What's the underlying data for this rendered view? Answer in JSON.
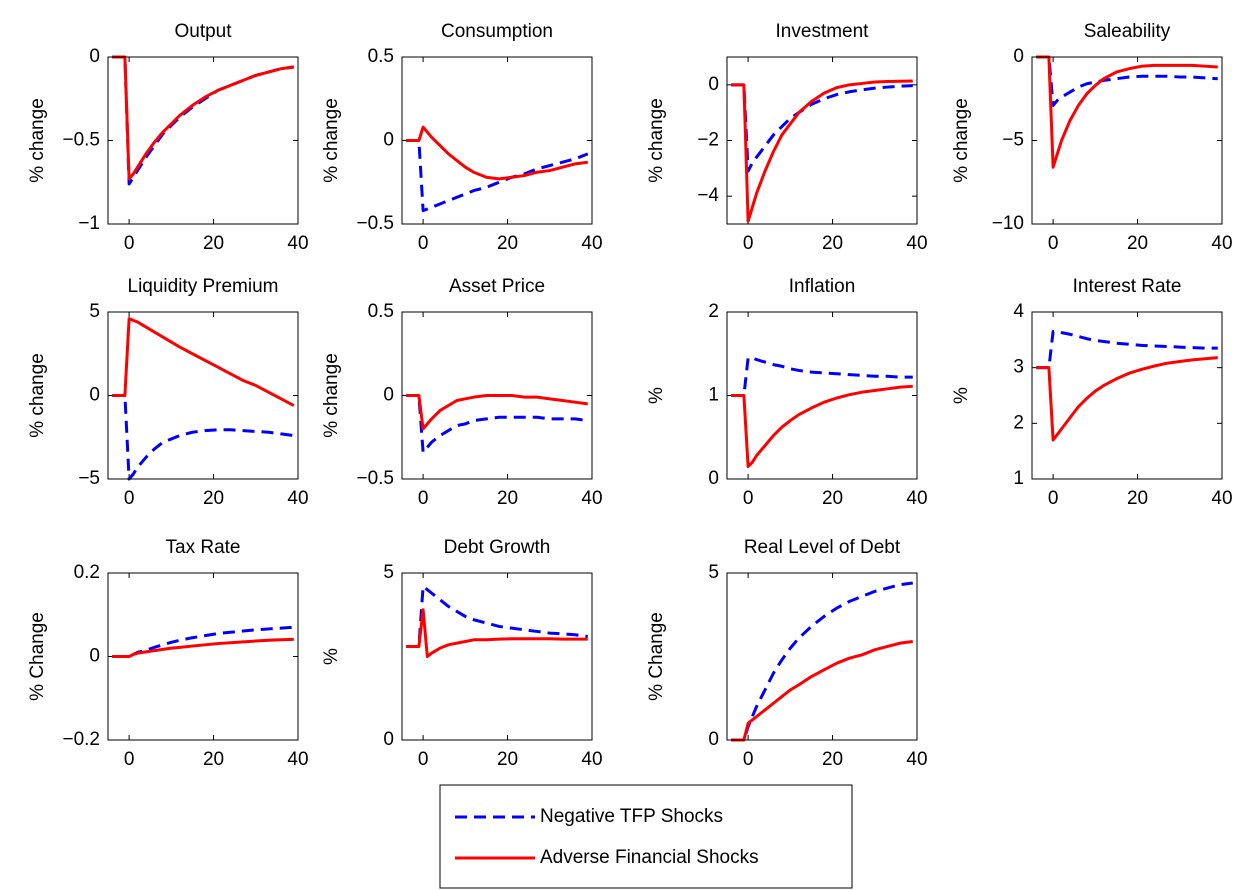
{
  "chart_data": [
    {
      "type": "line",
      "title": "Output",
      "ylabel": "% change",
      "x": [
        -4,
        -1,
        0,
        1,
        2,
        4,
        6,
        8,
        10,
        12,
        15,
        18,
        21,
        24,
        27,
        30,
        33,
        36,
        39
      ],
      "xlim": [
        -5,
        40
      ],
      "xticks": [
        0,
        20,
        40
      ],
      "ylim": [
        -1,
        0
      ],
      "yticks": [
        {
          "value": -1,
          "label": "−1"
        },
        {
          "value": -0.5,
          "label": "−0.5"
        },
        0
      ],
      "series": [
        {
          "name": "Negative TFP Shocks",
          "color": "#0000ff",
          "style": "dashed",
          "values": [
            0,
            0,
            -0.76,
            -0.72,
            -0.68,
            -0.6,
            -0.53,
            -0.46,
            -0.41,
            -0.36,
            -0.3,
            -0.25,
            -0.2,
            -0.17,
            -0.14,
            -0.11,
            -0.09,
            -0.07,
            -0.06
          ]
        },
        {
          "name": "Adverse Financial Shocks",
          "color": "#ff0000",
          "style": "solid",
          "values": [
            0,
            0,
            -0.73,
            -0.7,
            -0.66,
            -0.58,
            -0.51,
            -0.45,
            -0.4,
            -0.35,
            -0.29,
            -0.24,
            -0.2,
            -0.17,
            -0.14,
            -0.11,
            -0.09,
            -0.07,
            -0.06
          ]
        }
      ]
    },
    {
      "type": "line",
      "title": "Consumption",
      "ylabel": "% change",
      "x": [
        -4,
        -1,
        0,
        1,
        2,
        4,
        6,
        8,
        10,
        12,
        15,
        18,
        21,
        24,
        27,
        30,
        33,
        36,
        39
      ],
      "xlim": [
        -5,
        40
      ],
      "xticks": [
        0,
        20,
        40
      ],
      "ylim": [
        -0.5,
        0.5
      ],
      "yticks": [
        {
          "value": -0.5,
          "label": "−0.5"
        },
        0,
        0.5
      ],
      "series": [
        {
          "name": "Negative TFP Shocks",
          "color": "#0000ff",
          "style": "dashed",
          "values": [
            0,
            0,
            -0.42,
            -0.41,
            -0.4,
            -0.38,
            -0.36,
            -0.34,
            -0.32,
            -0.3,
            -0.28,
            -0.25,
            -0.22,
            -0.2,
            -0.17,
            -0.15,
            -0.13,
            -0.11,
            -0.08
          ]
        },
        {
          "name": "Adverse Financial Shocks",
          "color": "#ff0000",
          "style": "solid",
          "values": [
            0,
            0,
            0.08,
            0.05,
            0.02,
            -0.03,
            -0.08,
            -0.12,
            -0.16,
            -0.19,
            -0.22,
            -0.23,
            -0.22,
            -0.21,
            -0.19,
            -0.18,
            -0.16,
            -0.14,
            -0.13
          ]
        }
      ]
    },
    {
      "type": "line",
      "title": "Investment",
      "ylabel": "% change",
      "x": [
        -4,
        -1,
        0,
        1,
        2,
        4,
        6,
        8,
        10,
        12,
        15,
        18,
        21,
        24,
        27,
        30,
        33,
        36,
        39
      ],
      "xlim": [
        -5,
        40
      ],
      "xticks": [
        0,
        20,
        40
      ],
      "ylim": [
        -5,
        1
      ],
      "yticks": [
        {
          "value": -4,
          "label": "−4"
        },
        {
          "value": -2,
          "label": "−2"
        },
        0
      ],
      "series": [
        {
          "name": "Negative TFP Shocks",
          "color": "#0000ff",
          "style": "dashed",
          "values": [
            0,
            0,
            -3.1,
            -2.8,
            -2.6,
            -2.2,
            -1.8,
            -1.5,
            -1.2,
            -1.0,
            -0.7,
            -0.5,
            -0.35,
            -0.25,
            -0.18,
            -0.12,
            -0.08,
            -0.05,
            -0.03
          ]
        },
        {
          "name": "Adverse Financial Shocks",
          "color": "#ff0000",
          "style": "solid",
          "values": [
            0,
            0,
            -4.9,
            -4.4,
            -3.9,
            -3.1,
            -2.4,
            -1.8,
            -1.4,
            -1.0,
            -0.6,
            -0.3,
            -0.1,
            0,
            0.05,
            0.1,
            0.12,
            0.13,
            0.14
          ]
        }
      ]
    },
    {
      "type": "line",
      "title": "Saleability",
      "ylabel": "% change",
      "x": [
        -4,
        -1,
        0,
        1,
        2,
        4,
        6,
        8,
        10,
        12,
        15,
        18,
        21,
        24,
        27,
        30,
        33,
        36,
        39
      ],
      "xlim": [
        -5,
        40
      ],
      "xticks": [
        0,
        20,
        40
      ],
      "ylim": [
        -10,
        0
      ],
      "yticks": [
        {
          "value": -10,
          "label": "−10"
        },
        {
          "value": -5,
          "label": "−5"
        },
        0
      ],
      "series": [
        {
          "name": "Negative TFP Shocks",
          "color": "#0000ff",
          "style": "dashed",
          "values": [
            0,
            0,
            -2.9,
            -2.6,
            -2.4,
            -2.1,
            -1.8,
            -1.6,
            -1.5,
            -1.4,
            -1.3,
            -1.2,
            -1.15,
            -1.15,
            -1.15,
            -1.2,
            -1.2,
            -1.25,
            -1.3
          ]
        },
        {
          "name": "Adverse Financial Shocks",
          "color": "#ff0000",
          "style": "solid",
          "values": [
            0,
            0,
            -6.6,
            -5.8,
            -5.0,
            -3.8,
            -2.9,
            -2.2,
            -1.7,
            -1.3,
            -0.9,
            -0.7,
            -0.55,
            -0.5,
            -0.5,
            -0.5,
            -0.5,
            -0.55,
            -0.6
          ]
        }
      ]
    },
    {
      "type": "line",
      "title": "Liquidity Premium",
      "ylabel": "% change",
      "x": [
        -4,
        -1,
        0,
        1,
        2,
        4,
        6,
        8,
        10,
        12,
        15,
        18,
        21,
        24,
        27,
        30,
        33,
        36,
        39
      ],
      "xlim": [
        -5,
        40
      ],
      "xticks": [
        0,
        20,
        40
      ],
      "ylim": [
        -5,
        5
      ],
      "yticks": [
        {
          "value": -5,
          "label": "−5"
        },
        0,
        5
      ],
      "series": [
        {
          "name": "Negative TFP Shocks",
          "color": "#0000ff",
          "style": "dashed",
          "values": [
            0,
            0,
            -5,
            -4.7,
            -4.3,
            -3.7,
            -3.2,
            -2.8,
            -2.6,
            -2.4,
            -2.2,
            -2.1,
            -2.05,
            -2.05,
            -2.1,
            -2.15,
            -2.2,
            -2.3,
            -2.4
          ]
        },
        {
          "name": "Adverse Financial Shocks",
          "color": "#ff0000",
          "style": "solid",
          "values": [
            0,
            0,
            4.6,
            4.5,
            4.4,
            4.1,
            3.8,
            3.5,
            3.2,
            2.9,
            2.5,
            2.1,
            1.7,
            1.3,
            0.9,
            0.6,
            0.2,
            -0.2,
            -0.6
          ]
        }
      ]
    },
    {
      "type": "line",
      "title": "Asset Price",
      "ylabel": "% change",
      "x": [
        -4,
        -1,
        0,
        1,
        2,
        4,
        6,
        8,
        10,
        12,
        15,
        18,
        21,
        24,
        27,
        30,
        33,
        36,
        39
      ],
      "xlim": [
        -5,
        40
      ],
      "xticks": [
        0,
        20,
        40
      ],
      "ylim": [
        -0.5,
        0.5
      ],
      "yticks": [
        {
          "value": -0.5,
          "label": "−0.5"
        },
        0,
        0.5
      ],
      "series": [
        {
          "name": "Negative TFP Shocks",
          "color": "#0000ff",
          "style": "dashed",
          "values": [
            0,
            0,
            -0.34,
            -0.31,
            -0.28,
            -0.24,
            -0.21,
            -0.18,
            -0.17,
            -0.15,
            -0.14,
            -0.13,
            -0.13,
            -0.13,
            -0.13,
            -0.14,
            -0.14,
            -0.14,
            -0.15
          ]
        },
        {
          "name": "Adverse Financial Shocks",
          "color": "#ff0000",
          "style": "solid",
          "values": [
            0,
            0,
            -0.2,
            -0.17,
            -0.14,
            -0.09,
            -0.06,
            -0.03,
            -0.02,
            -0.01,
            0,
            0,
            0,
            -0.01,
            -0.01,
            -0.02,
            -0.03,
            -0.04,
            -0.05
          ]
        }
      ]
    },
    {
      "type": "line",
      "title": "Inflation",
      "ylabel": "%",
      "x": [
        -4,
        -1,
        0,
        1,
        2,
        4,
        6,
        8,
        10,
        12,
        15,
        18,
        21,
        24,
        27,
        30,
        33,
        36,
        39
      ],
      "xlim": [
        -5,
        40
      ],
      "xticks": [
        0,
        20,
        40
      ],
      "ylim": [
        0,
        2
      ],
      "yticks": [
        0,
        1,
        2
      ],
      "series": [
        {
          "name": "Negative TFP Shocks",
          "color": "#0000ff",
          "style": "dashed",
          "values": [
            1,
            1,
            1.45,
            1.45,
            1.43,
            1.4,
            1.37,
            1.35,
            1.32,
            1.3,
            1.28,
            1.27,
            1.26,
            1.25,
            1.24,
            1.23,
            1.23,
            1.22,
            1.22
          ]
        },
        {
          "name": "Adverse Financial Shocks",
          "color": "#ff0000",
          "style": "solid",
          "values": [
            1,
            1,
            0.15,
            0.2,
            0.28,
            0.4,
            0.52,
            0.62,
            0.7,
            0.77,
            0.85,
            0.92,
            0.97,
            1.01,
            1.04,
            1.06,
            1.08,
            1.1,
            1.11
          ]
        }
      ]
    },
    {
      "type": "line",
      "title": "Interest Rate",
      "ylabel": "%",
      "x": [
        -4,
        -1,
        0,
        1,
        2,
        4,
        6,
        8,
        10,
        12,
        15,
        18,
        21,
        24,
        27,
        30,
        33,
        36,
        39
      ],
      "xlim": [
        -5,
        40
      ],
      "xticks": [
        0,
        20,
        40
      ],
      "ylim": [
        1,
        4
      ],
      "yticks": [
        1,
        2,
        3,
        4
      ],
      "series": [
        {
          "name": "Negative TFP Shocks",
          "color": "#0000ff",
          "style": "dashed",
          "values": [
            3,
            3,
            3.65,
            3.65,
            3.63,
            3.6,
            3.56,
            3.52,
            3.49,
            3.47,
            3.44,
            3.42,
            3.4,
            3.39,
            3.38,
            3.37,
            3.36,
            3.35,
            3.35
          ]
        },
        {
          "name": "Adverse Financial Shocks",
          "color": "#ff0000",
          "style": "solid",
          "values": [
            3,
            3,
            1.7,
            1.8,
            1.9,
            2.1,
            2.3,
            2.45,
            2.58,
            2.68,
            2.8,
            2.9,
            2.97,
            3.03,
            3.08,
            3.11,
            3.14,
            3.16,
            3.18
          ]
        }
      ]
    },
    {
      "type": "line",
      "title": "Tax Rate",
      "ylabel": "% Change",
      "x": [
        -4,
        -1,
        0,
        1,
        2,
        4,
        6,
        8,
        10,
        12,
        15,
        18,
        21,
        24,
        27,
        30,
        33,
        36,
        39
      ],
      "xlim": [
        -5,
        40
      ],
      "xticks": [
        0,
        20,
        40
      ],
      "ylim": [
        -0.2,
        0.2
      ],
      "yticks": [
        {
          "value": -0.2,
          "label": "−0.2"
        },
        0,
        0.2
      ],
      "series": [
        {
          "name": "Negative TFP Shocks",
          "color": "#0000ff",
          "style": "dashed",
          "values": [
            0,
            0,
            0,
            0.005,
            0.01,
            0.015,
            0.022,
            0.028,
            0.034,
            0.039,
            0.045,
            0.05,
            0.055,
            0.058,
            0.061,
            0.064,
            0.066,
            0.068,
            0.07
          ]
        },
        {
          "name": "Adverse Financial Shocks",
          "color": "#ff0000",
          "style": "solid",
          "values": [
            0,
            0,
            0,
            0.005,
            0.008,
            0.011,
            0.014,
            0.017,
            0.02,
            0.022,
            0.025,
            0.028,
            0.031,
            0.033,
            0.035,
            0.037,
            0.039,
            0.04,
            0.041
          ]
        }
      ]
    },
    {
      "type": "line",
      "title": "Debt Growth",
      "ylabel": "%",
      "x": [
        -4,
        -1,
        0,
        1,
        2,
        4,
        6,
        8,
        10,
        12,
        15,
        18,
        21,
        24,
        27,
        30,
        33,
        36,
        39
      ],
      "xlim": [
        -5,
        40
      ],
      "xticks": [
        0,
        20,
        40
      ],
      "ylim": [
        0,
        5
      ],
      "yticks": [
        0,
        5
      ],
      "series": [
        {
          "name": "Negative TFP Shocks",
          "color": "#0000ff",
          "style": "dashed",
          "values": [
            2.8,
            2.8,
            4.6,
            4.5,
            4.4,
            4.2,
            4.0,
            3.85,
            3.7,
            3.6,
            3.5,
            3.4,
            3.35,
            3.3,
            3.25,
            3.2,
            3.18,
            3.15,
            3.1
          ]
        },
        {
          "name": "Adverse Financial Shocks",
          "color": "#ff0000",
          "style": "solid",
          "values": [
            2.8,
            2.8,
            3.9,
            2.5,
            2.6,
            2.75,
            2.85,
            2.9,
            2.95,
            3,
            3,
            3.02,
            3.03,
            3.03,
            3.03,
            3.03,
            3.02,
            3.02,
            3.02
          ]
        }
      ]
    },
    {
      "type": "line",
      "title": "Real Level of Debt",
      "ylabel": "% Change",
      "x": [
        -4,
        -1,
        0,
        1,
        2,
        4,
        6,
        8,
        10,
        12,
        15,
        18,
        21,
        24,
        27,
        30,
        33,
        36,
        39
      ],
      "xlim": [
        -5,
        40
      ],
      "xticks": [
        0,
        20,
        40
      ],
      "ylim": [
        0,
        5
      ],
      "yticks": [
        0,
        5
      ],
      "series": [
        {
          "name": "Negative TFP Shocks",
          "color": "#0000ff",
          "style": "dashed",
          "values": [
            0,
            0,
            0.4,
            0.7,
            1.0,
            1.5,
            2.0,
            2.4,
            2.75,
            3.05,
            3.4,
            3.7,
            3.95,
            4.15,
            4.3,
            4.45,
            4.55,
            4.65,
            4.7
          ]
        },
        {
          "name": "Adverse Financial Shocks",
          "color": "#ff0000",
          "style": "solid",
          "values": [
            0,
            0,
            0.5,
            0.6,
            0.7,
            0.9,
            1.1,
            1.3,
            1.5,
            1.65,
            1.9,
            2.1,
            2.3,
            2.45,
            2.55,
            2.7,
            2.8,
            2.9,
            2.95
          ]
        }
      ]
    }
  ]
}
